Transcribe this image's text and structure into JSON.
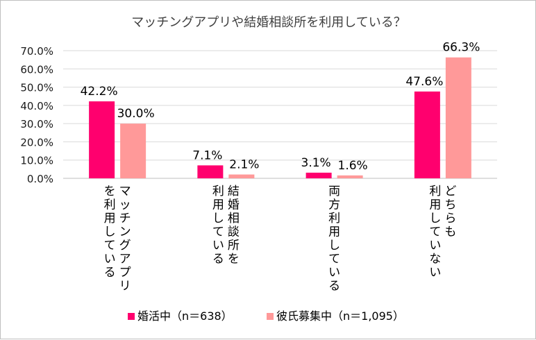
{
  "chart_data": {
    "type": "bar",
    "title": "マッチングアプリや結婚相談所を利用している？",
    "categories": [
      [
        "マッチングアプリ",
        "を利用している"
      ],
      [
        "結婚相談所を",
        "利用している"
      ],
      [
        "両方利用している"
      ],
      [
        "どちらも",
        "利用していない"
      ]
    ],
    "series": [
      {
        "name": "婚活中（n＝638）",
        "color": "#ff006e",
        "values": [
          42.2,
          7.1,
          3.1,
          47.6
        ],
        "labels": [
          "42.2%",
          "7.1%",
          "3.1%",
          "47.6%"
        ]
      },
      {
        "name": "彼氏募集中（n＝1,095）",
        "color": "#ff9999",
        "values": [
          30.0,
          2.1,
          1.6,
          66.3
        ],
        "labels": [
          "30.0%",
          "2.1%",
          "1.6%",
          "66.3%"
        ]
      }
    ],
    "ylim": [
      0,
      70
    ],
    "yticks": [
      0,
      10,
      20,
      30,
      40,
      50,
      60,
      70
    ],
    "ytick_labels": [
      "0.0%",
      "10.0%",
      "20.0%",
      "30.0%",
      "40.0%",
      "50.0%",
      "60.0%",
      "70.0%"
    ],
    "grid": true,
    "legend_position": "bottom",
    "gridline_color": "#d9d9d9",
    "axis_color": "#bfbfbf"
  }
}
